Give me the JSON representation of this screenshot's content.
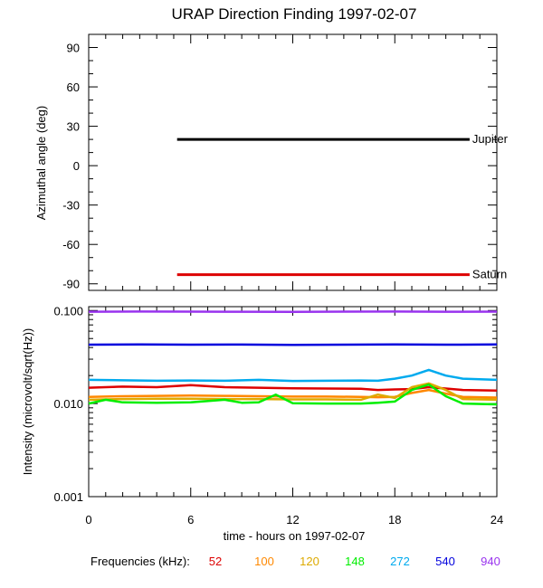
{
  "colors": {
    "background": "#ffffff",
    "axis": "#000000",
    "jupiter": "#000000",
    "saturn": "#dd0000"
  },
  "chart_data": [
    {
      "type": "line",
      "title": "URAP Direction Finding  1997-02-07",
      "xlabel": "",
      "ylabel": "Azimuthal angle (deg)",
      "xlim": [
        0,
        24
      ],
      "ylim": [
        -95,
        100
      ],
      "yticks": [
        90,
        60,
        30,
        0,
        -30,
        -60,
        -90
      ],
      "yticklabels": [
        "90",
        "60",
        "30",
        "0",
        "-30",
        "-60",
        "-90"
      ],
      "grid": false,
      "series": [
        {
          "name": "Jupiter",
          "color": "#000000",
          "x": [
            5.2,
            22.4
          ],
          "y": [
            20,
            20
          ]
        },
        {
          "name": "Saturn",
          "color": "#dd0000",
          "x": [
            5.2,
            22.4
          ],
          "y": [
            -83,
            -83
          ]
        }
      ]
    },
    {
      "type": "scatter",
      "title": "",
      "xlabel": "time - hours on 1997-02-07",
      "ylabel": "Intensity (microvolt/sqrt(Hz))",
      "xlim": [
        0,
        24
      ],
      "xticks": [
        0,
        6,
        12,
        18,
        24
      ],
      "xticklabels": [
        "0",
        "6",
        "12",
        "18",
        "24"
      ],
      "ylim": [
        0.001,
        0.11
      ],
      "yscale": "log",
      "yticks": [
        0.1,
        0.01,
        0.001
      ],
      "yticklabels": [
        "0.100",
        "0.010",
        "0.001"
      ],
      "grid": false,
      "legend_title": "Frequencies (kHz):",
      "legend_placement": "bottom",
      "series": [
        {
          "name": "52",
          "color": "#dd0000",
          "x": [
            0,
            2,
            4,
            6,
            8,
            10,
            12,
            14,
            16,
            17,
            18,
            19,
            20,
            21,
            22,
            24
          ],
          "y": [
            0.0148,
            0.0152,
            0.015,
            0.0158,
            0.015,
            0.0148,
            0.0146,
            0.0145,
            0.0144,
            0.014,
            0.0142,
            0.0143,
            0.015,
            0.0145,
            0.014,
            0.0138
          ]
        },
        {
          "name": "100",
          "color": "#ff8800",
          "x": [
            0,
            2,
            4,
            6,
            8,
            10,
            12,
            14,
            16,
            17,
            18,
            19,
            20,
            21,
            22,
            24
          ],
          "y": [
            0.0118,
            0.012,
            0.0121,
            0.0122,
            0.0121,
            0.012,
            0.0119,
            0.0119,
            0.0118,
            0.0117,
            0.0118,
            0.013,
            0.014,
            0.0128,
            0.0118,
            0.0116
          ]
        },
        {
          "name": "120",
          "color": "#ddaa00",
          "x": [
            0,
            2,
            4,
            6,
            8,
            10,
            12,
            14,
            16,
            17,
            18,
            19,
            20,
            21,
            22,
            24
          ],
          "y": [
            0.011,
            0.0112,
            0.0113,
            0.0113,
            0.0112,
            0.0112,
            0.0111,
            0.0111,
            0.011,
            0.0125,
            0.0115,
            0.015,
            0.0165,
            0.014,
            0.0112,
            0.011
          ]
        },
        {
          "name": "148",
          "color": "#00ee00",
          "x": [
            0,
            1,
            2,
            4,
            6,
            8,
            9,
            10,
            11,
            12,
            14,
            16,
            17,
            18,
            19,
            20,
            21,
            22,
            24
          ],
          "y": [
            0.01,
            0.011,
            0.0103,
            0.0102,
            0.0103,
            0.011,
            0.0102,
            0.0103,
            0.0125,
            0.0101,
            0.01,
            0.01,
            0.0102,
            0.0105,
            0.014,
            0.016,
            0.012,
            0.01,
            0.0098
          ]
        },
        {
          "name": "272",
          "color": "#00aaee",
          "x": [
            0,
            2,
            4,
            6,
            8,
            10,
            12,
            14,
            16,
            17,
            18,
            19,
            20,
            21,
            22,
            24
          ],
          "y": [
            0.018,
            0.0178,
            0.0176,
            0.0177,
            0.0176,
            0.018,
            0.0175,
            0.0176,
            0.0177,
            0.0176,
            0.0185,
            0.02,
            0.023,
            0.02,
            0.0185,
            0.018
          ]
        },
        {
          "name": "540",
          "color": "#0000dd",
          "x": [
            0,
            3,
            6,
            9,
            12,
            15,
            18,
            21,
            24
          ],
          "y": [
            0.043,
            0.0432,
            0.043,
            0.0431,
            0.0428,
            0.043,
            0.0432,
            0.043,
            0.0432
          ]
        },
        {
          "name": "940",
          "color": "#9933ee",
          "x": [
            0,
            3,
            6,
            9,
            12,
            15,
            18,
            21,
            24
          ],
          "y": [
            0.097,
            0.0975,
            0.0972,
            0.097,
            0.0968,
            0.0972,
            0.0975,
            0.097,
            0.0972
          ]
        }
      ]
    }
  ]
}
